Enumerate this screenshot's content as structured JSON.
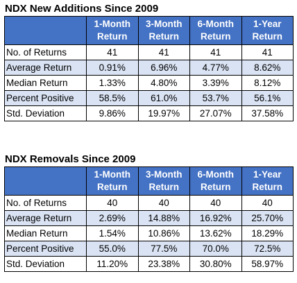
{
  "additions": {
    "title": "NDX New Additions Since 2009",
    "headers": [
      [
        "1-Month",
        "Return"
      ],
      [
        "3-Month",
        "Return"
      ],
      [
        "6-Month",
        "Return"
      ],
      [
        "1-Year",
        "Return"
      ]
    ],
    "rows": [
      {
        "label": "No. of Returns",
        "values": [
          "41",
          "41",
          "41",
          "41"
        ]
      },
      {
        "label": "Average Return",
        "values": [
          "0.91%",
          "6.96%",
          "4.77%",
          "8.62%"
        ]
      },
      {
        "label": "Median Return",
        "values": [
          "1.33%",
          "4.80%",
          "3.39%",
          "8.12%"
        ]
      },
      {
        "label": "Percent Positive",
        "values": [
          "58.5%",
          "61.0%",
          "53.7%",
          "56.1%"
        ]
      },
      {
        "label": "Std. Deviation",
        "values": [
          "9.86%",
          "19.97%",
          "27.07%",
          "37.58%"
        ]
      }
    ]
  },
  "removals": {
    "title": "NDX Removals Since 2009",
    "headers": [
      [
        "1-Month",
        "Return"
      ],
      [
        "3-Month",
        "Return"
      ],
      [
        "6-Month",
        "Return"
      ],
      [
        "1-Year",
        "Return"
      ]
    ],
    "rows": [
      {
        "label": "No. of Returns",
        "values": [
          "40",
          "40",
          "40",
          "40"
        ]
      },
      {
        "label": "Average Return",
        "values": [
          "2.69%",
          "14.88%",
          "16.92%",
          "25.70%"
        ]
      },
      {
        "label": "Median Return",
        "values": [
          "1.54%",
          "10.86%",
          "13.62%",
          "18.29%"
        ]
      },
      {
        "label": "Percent Positive",
        "values": [
          "55.0%",
          "77.5%",
          "70.0%",
          "72.5%"
        ]
      },
      {
        "label": "Std. Deviation",
        "values": [
          "11.20%",
          "23.38%",
          "30.80%",
          "58.97%"
        ]
      }
    ]
  },
  "colors": {
    "header_fill": "#4472c4",
    "header_text": "#ffffff",
    "band_fill": "#dae3f3",
    "border": "#000000"
  }
}
